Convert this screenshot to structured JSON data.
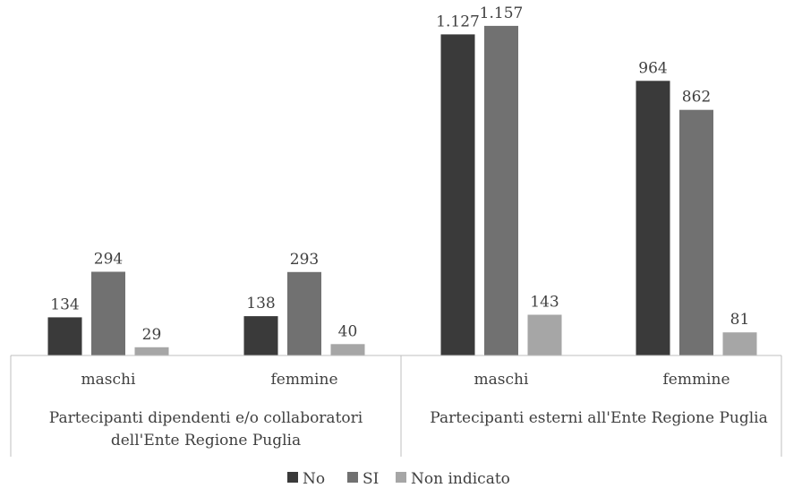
{
  "chart_data": {
    "type": "bar",
    "groups": [
      {
        "label_lines": [
          "Partecipanti dipendenti e/o collaboratori",
          "dell'Ente Regione Puglia"
        ],
        "categories": [
          "maschi",
          "femmine"
        ]
      },
      {
        "label_lines": [
          "Partecipanti esterni all'Ente Regione Puglia"
        ],
        "categories": [
          "maschi",
          "femmine"
        ]
      }
    ],
    "categories": [
      "maschi",
      "femmine",
      "maschi",
      "femmine"
    ],
    "series": [
      {
        "name": "No",
        "color": "#3a3a3a",
        "values": [
          134,
          138,
          1127,
          964
        ],
        "labels": [
          "134",
          "138",
          "1.127",
          "964"
        ]
      },
      {
        "name": "SI",
        "color": "#717171",
        "values": [
          294,
          293,
          1157,
          862
        ],
        "labels": [
          "294",
          "293",
          "1.157",
          "862"
        ]
      },
      {
        "name": "Non indicato",
        "color": "#a6a6a6",
        "values": [
          29,
          40,
          143,
          81
        ],
        "labels": [
          "29",
          "40",
          "143",
          "81"
        ]
      }
    ],
    "ylim": [
      0,
      1210
    ],
    "legend_position": "bottom",
    "grid": false
  }
}
